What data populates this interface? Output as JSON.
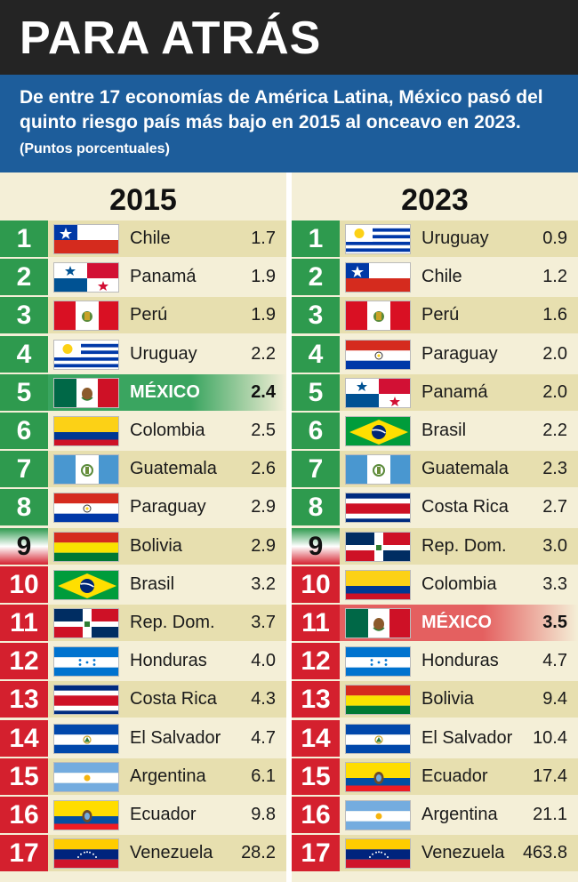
{
  "header": {
    "title": "PARA ATRÁS",
    "subtitle": "De entre 17 economías de América Latina, México pasó del quinto riesgo país más bajo en 2015 al onceavo en 2023.",
    "units": "(Puntos porcentuales)"
  },
  "colors": {
    "green": "#2e9a4e",
    "red": "#d4202e",
    "highlight_green": "#3aa560",
    "highlight_red": "#e46060",
    "band": "#e7dfaf",
    "light": "#f4efd7"
  },
  "chart_data": {
    "type": "table",
    "columns": [
      {
        "year": "2015",
        "rows": [
          {
            "rank": "1",
            "country": "Chile",
            "value": "1.7",
            "flag": "chile-flag"
          },
          {
            "rank": "2",
            "country": "Panamá",
            "value": "1.9",
            "flag": "panama-flag"
          },
          {
            "rank": "3",
            "country": "Perú",
            "value": "1.9",
            "flag": "peru-flag"
          },
          {
            "rank": "4",
            "country": "Uruguay",
            "value": "2.2",
            "flag": "uruguay-flag"
          },
          {
            "rank": "5",
            "country": "MÉXICO",
            "value": "2.4",
            "flag": "mexico-flag",
            "highlight": true
          },
          {
            "rank": "6",
            "country": "Colombia",
            "value": "2.5",
            "flag": "colombia-flag"
          },
          {
            "rank": "7",
            "country": "Guatemala",
            "value": "2.6",
            "flag": "guatemala-flag"
          },
          {
            "rank": "8",
            "country": "Paraguay",
            "value": "2.9",
            "flag": "paraguay-flag"
          },
          {
            "rank": "9",
            "country": "Bolivia",
            "value": "2.9",
            "flag": "bolivia-flag"
          },
          {
            "rank": "10",
            "country": "Brasil",
            "value": "3.2",
            "flag": "brasil-flag"
          },
          {
            "rank": "11",
            "country": "Rep. Dom.",
            "value": "3.7",
            "flag": "rep-dom-flag"
          },
          {
            "rank": "12",
            "country": "Honduras",
            "value": "4.0",
            "flag": "honduras-flag"
          },
          {
            "rank": "13",
            "country": "Costa Rica",
            "value": "4.3",
            "flag": "costa-rica-flag"
          },
          {
            "rank": "14",
            "country": "El Salvador",
            "value": "4.7",
            "flag": "el-salvador-flag"
          },
          {
            "rank": "15",
            "country": "Argentina",
            "value": "6.1",
            "flag": "argentina-flag"
          },
          {
            "rank": "16",
            "country": "Ecuador",
            "value": "9.8",
            "flag": "ecuador-flag"
          },
          {
            "rank": "17",
            "country": "Venezuela",
            "value": "28.2",
            "flag": "venezuela-flag"
          }
        ]
      },
      {
        "year": "2023",
        "rows": [
          {
            "rank": "1",
            "country": "Uruguay",
            "value": "0.9",
            "flag": "uruguay-flag"
          },
          {
            "rank": "2",
            "country": "Chile",
            "value": "1.2",
            "flag": "chile-flag"
          },
          {
            "rank": "3",
            "country": "Perú",
            "value": "1.6",
            "flag": "peru-flag"
          },
          {
            "rank": "4",
            "country": "Paraguay",
            "value": "2.0",
            "flag": "paraguay-flag"
          },
          {
            "rank": "5",
            "country": "Panamá",
            "value": "2.0",
            "flag": "panama-flag"
          },
          {
            "rank": "6",
            "country": "Brasil",
            "value": "2.2",
            "flag": "brasil-flag"
          },
          {
            "rank": "7",
            "country": "Guatemala",
            "value": "2.3",
            "flag": "guatemala-flag"
          },
          {
            "rank": "8",
            "country": "Costa Rica",
            "value": "2.7",
            "flag": "costa-rica-flag"
          },
          {
            "rank": "9",
            "country": "Rep. Dom.",
            "value": "3.0",
            "flag": "rep-dom-flag"
          },
          {
            "rank": "10",
            "country": "Colombia",
            "value": "3.3",
            "flag": "colombia-flag"
          },
          {
            "rank": "11",
            "country": "MÉXICO",
            "value": "3.5",
            "flag": "mexico-flag",
            "highlight": true
          },
          {
            "rank": "12",
            "country": "Honduras",
            "value": "4.7",
            "flag": "honduras-flag"
          },
          {
            "rank": "13",
            "country": "Bolivia",
            "value": "9.4",
            "flag": "bolivia-flag"
          },
          {
            "rank": "14",
            "country": "El Salvador",
            "value": "10.4",
            "flag": "el-salvador-flag"
          },
          {
            "rank": "15",
            "country": "Ecuador",
            "value": "17.4",
            "flag": "ecuador-flag"
          },
          {
            "rank": "16",
            "country": "Argentina",
            "value": "21.1",
            "flag": "argentina-flag"
          },
          {
            "rank": "17",
            "country": "Venezuela",
            "value": "463.8",
            "flag": "venezuela-flag"
          }
        ]
      }
    ]
  }
}
